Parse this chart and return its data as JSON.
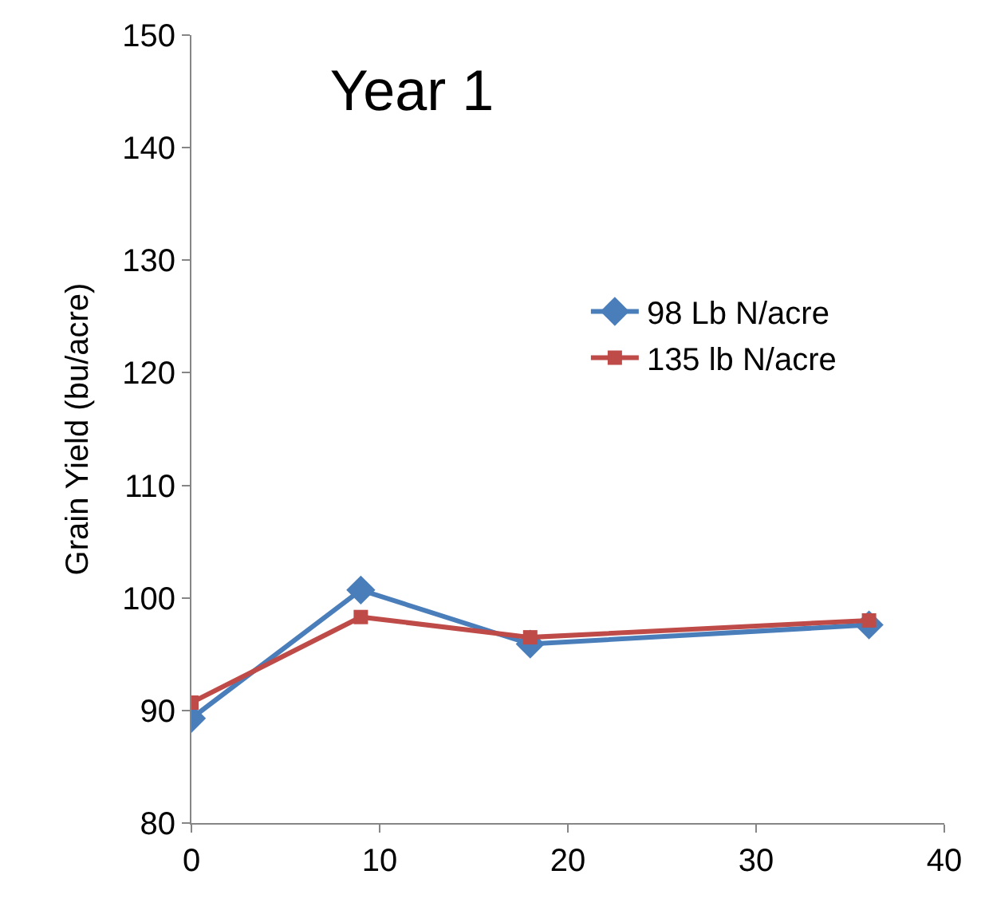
{
  "chart_data": {
    "type": "line",
    "title": "Year 1",
    "ylabel": "Grain Yield (bu/acre)",
    "xlim": [
      0,
      40
    ],
    "xticks": [
      0,
      10,
      20,
      30,
      40
    ],
    "ylim": [
      80,
      150
    ],
    "yticks": [
      80,
      90,
      100,
      110,
      120,
      130,
      140,
      150
    ],
    "grid": false,
    "legend": "right",
    "line_style": "solid",
    "series": [
      {
        "name": "98 Lb N/acre",
        "color": "#4a7ebb",
        "marker": "diamond",
        "x": [
          0,
          9,
          18,
          36
        ],
        "values": [
          89.3,
          100.7,
          95.9,
          97.6
        ]
      },
      {
        "name": "135 lb N/acre",
        "color": "#be4b48",
        "marker": "square",
        "x": [
          0,
          9,
          18,
          36
        ],
        "values": [
          90.7,
          98.3,
          96.5,
          98.0
        ]
      }
    ]
  }
}
